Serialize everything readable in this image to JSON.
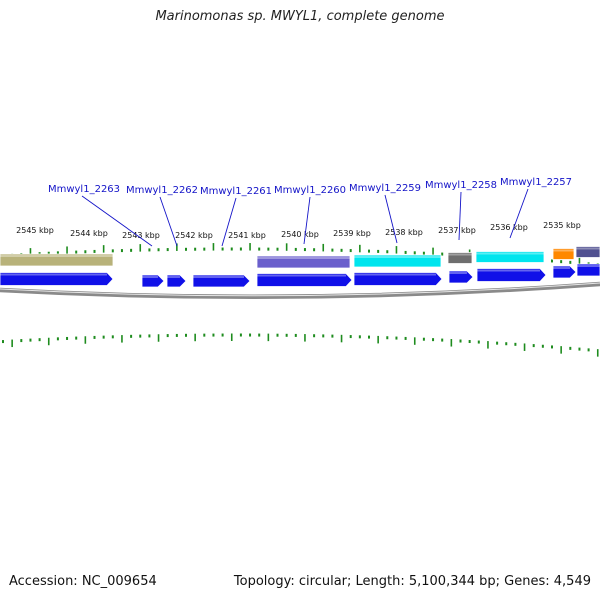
{
  "title": "Marinomonas sp. MWYL1, complete genome",
  "footer": {
    "accession": "Accession: NC_009654",
    "summary": "Topology: circular; Length: 5,100,344 bp; Genes: 4,549"
  },
  "colors": {
    "cds_forward": "#1010e8",
    "cds_reverse_slate": "#6a5fcc",
    "cds_cyan": "#00e5ee",
    "gray_feature": "#6e6e6e",
    "orange_feature": "#ff8800",
    "olive_feature": "#b8b27a",
    "tick": "#1e8c1e",
    "backbone": "#888888",
    "label": "#1414c8"
  },
  "kbp_scale": [
    "2545 kbp",
    "2544 kbp",
    "2543 kbp",
    "2542 kbp",
    "2541 kbp",
    "2540 kbp",
    "2539 kbp",
    "2538 kbp",
    "2537 kbp",
    "2536 kbp",
    "2535 kbp"
  ],
  "gene_labels": [
    "Mmwyl1_2263",
    "Mmwyl1_2262",
    "Mmwyl1_2261",
    "Mmwyl1_2260",
    "Mmwyl1_2259",
    "Mmwyl1_2258",
    "Mmwyl1_2257"
  ]
}
